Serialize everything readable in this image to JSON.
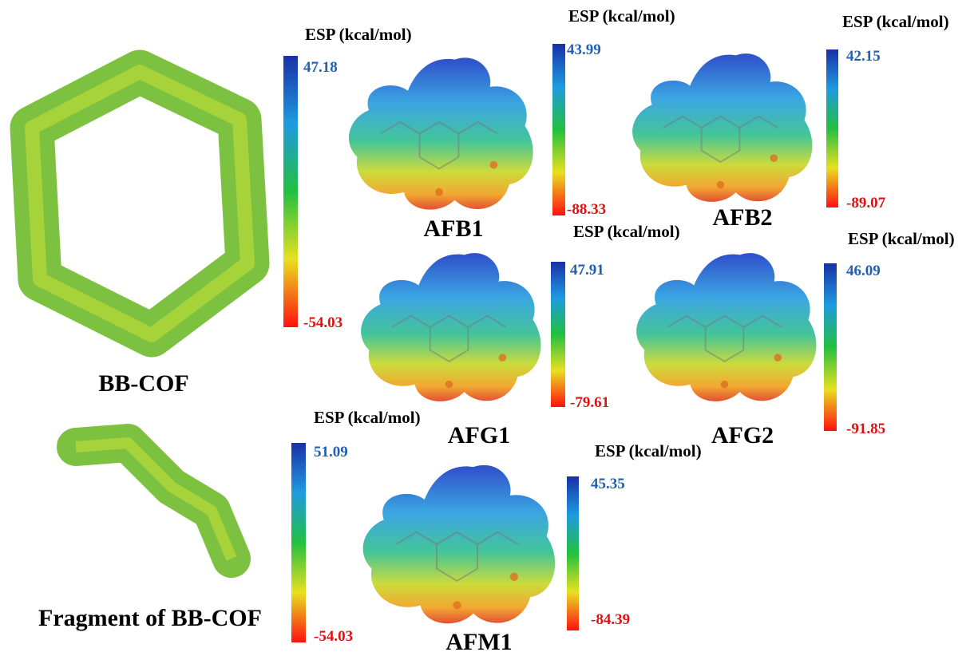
{
  "panels": [
    {
      "label": "BB-COF",
      "esp_title": "ESP (kcal/mol)",
      "max": "47.18",
      "min": "-54.03"
    },
    {
      "label": "Fragment of BB-COF",
      "esp_title": "ESP (kcal/mol)",
      "max": "51.09",
      "min": "-54.03"
    },
    {
      "label": "AFB1",
      "esp_title": "ESP (kcal/mol)",
      "max": "43.99",
      "min": "-88.33"
    },
    {
      "label": "AFB2",
      "esp_title": "ESP (kcal/mol)",
      "max": "42.15",
      "min": "-89.07"
    },
    {
      "label": "AFG1",
      "esp_title": "ESP (kcal/mol)",
      "max": "47.91",
      "min": "-79.61"
    },
    {
      "label": "AFG2",
      "esp_title": "ESP (kcal/mol)",
      "max": "46.09",
      "min": "-91.85"
    },
    {
      "label": "AFM1",
      "esp_title": "ESP (kcal/mol)",
      "max": "45.35",
      "min": "-84.39"
    }
  ]
}
